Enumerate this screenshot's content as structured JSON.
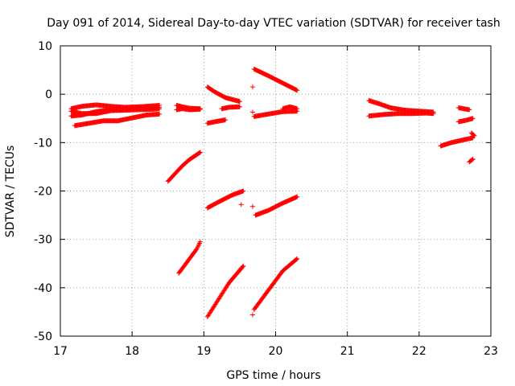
{
  "chart_data": {
    "type": "scatter",
    "title": "Day 091 of 2014, Sidereal Day-to-day VTEC variation (SDTVAR) for receiver tash",
    "xlabel": "GPS time / hours",
    "ylabel": "SDTVAR / TECUs",
    "xlim": [
      17,
      23
    ],
    "ylim": [
      -50,
      10
    ],
    "xticks": [
      "17",
      "18",
      "19",
      "20",
      "21",
      "22",
      "23"
    ],
    "yticks": [
      "10",
      "0",
      "-10",
      "-20",
      "-30",
      "-40",
      "-50"
    ],
    "grid": true,
    "marker": "plus",
    "color": "#ff0000",
    "series_segments": [
      {
        "x": [
          17.15,
          17.3,
          17.5,
          17.7,
          17.9,
          18.1,
          18.3,
          18.38
        ],
        "y": [
          -3.0,
          -2.5,
          -2.2,
          -2.5,
          -2.7,
          -2.6,
          -2.4,
          -2.3
        ]
      },
      {
        "x": [
          17.15,
          17.3,
          17.5,
          17.7,
          17.9,
          18.1,
          18.3,
          18.38
        ],
        "y": [
          -4.5,
          -4.3,
          -3.6,
          -3.2,
          -3.0,
          -2.9,
          -2.8,
          -2.7
        ]
      },
      {
        "x": [
          17.15,
          17.3,
          17.5,
          17.7,
          17.9,
          18.1,
          18.3,
          18.38
        ],
        "y": [
          -3.5,
          -4.0,
          -4.0,
          -3.4,
          -3.3,
          -3.2,
          -3.1,
          -3.0
        ]
      },
      {
        "x": [
          17.2,
          17.4,
          17.6,
          17.8,
          18.0,
          18.2,
          18.38
        ],
        "y": [
          -6.5,
          -6.0,
          -5.5,
          -5.5,
          -4.9,
          -4.3,
          -4.1
        ]
      },
      {
        "x": [
          18.62,
          18.7,
          18.8,
          18.95
        ],
        "y": [
          -2.3,
          -2.6,
          -2.9,
          -3.0
        ]
      },
      {
        "x": [
          18.62,
          18.7,
          18.8,
          18.95
        ],
        "y": [
          -3.2,
          -3.0,
          -3.2,
          -3.1
        ]
      },
      {
        "x": [
          18.5,
          18.6,
          18.7,
          18.8,
          18.95
        ],
        "y": [
          -18.0,
          -16.4,
          -14.8,
          -13.5,
          -12.0
        ]
      },
      {
        "x": [
          18.65,
          18.7,
          18.8,
          18.9,
          18.95
        ],
        "y": [
          -37.0,
          -36.0,
          -34.0,
          -32.0,
          -30.5
        ]
      },
      {
        "x": [
          19.05,
          19.15,
          19.3,
          19.5
        ],
        "y": [
          1.5,
          0.5,
          -0.7,
          -1.5
        ]
      },
      {
        "x": [
          19.25,
          19.35,
          19.5
        ],
        "y": [
          -3.0,
          -2.7,
          -2.6
        ]
      },
      {
        "x": [
          19.05,
          19.15,
          19.3
        ],
        "y": [
          -6.0,
          -5.7,
          -5.3
        ]
      },
      {
        "x": [
          19.05,
          19.2,
          19.4,
          19.55
        ],
        "y": [
          -23.5,
          -22.3,
          -20.8,
          -20.0
        ]
      },
      {
        "x": [
          19.05,
          19.2,
          19.35,
          19.55
        ],
        "y": [
          -46.0,
          -42.5,
          -39.0,
          -35.5
        ]
      },
      {
        "x": [
          19.7,
          19.9,
          20.1,
          20.3
        ],
        "y": [
          5.2,
          3.8,
          2.3,
          0.8
        ]
      },
      {
        "x": [
          19.7,
          19.9,
          20.1,
          20.3
        ],
        "y": [
          -4.6,
          -4.1,
          -3.6,
          -3.5
        ]
      },
      {
        "x": [
          20.1,
          20.2,
          20.3
        ],
        "y": [
          -3.0,
          -2.6,
          -3.0
        ]
      },
      {
        "x": [
          19.72,
          19.9,
          20.1,
          20.3
        ],
        "y": [
          -25.0,
          -24.0,
          -22.5,
          -21.2
        ]
      },
      {
        "x": [
          19.7,
          19.8,
          19.95,
          20.1,
          20.3
        ],
        "y": [
          -44.5,
          -42.5,
          -39.5,
          -36.5,
          -34.0
        ]
      },
      {
        "x": [
          21.3,
          21.45,
          21.6,
          21.8,
          22.0,
          22.2
        ],
        "y": [
          -1.3,
          -2.0,
          -2.8,
          -3.3,
          -3.5,
          -3.7
        ]
      },
      {
        "x": [
          21.3,
          21.5,
          21.7,
          21.9,
          22.1,
          22.2
        ],
        "y": [
          -4.5,
          -4.2,
          -4.0,
          -4.0,
          -3.9,
          -4.0
        ]
      },
      {
        "x": [
          22.55,
          22.62,
          22.7
        ],
        "y": [
          -2.8,
          -3.0,
          -3.2
        ]
      },
      {
        "x": [
          22.55,
          22.65,
          22.75
        ],
        "y": [
          -5.7,
          -5.4,
          -5.0
        ]
      },
      {
        "x": [
          22.3,
          22.45,
          22.6,
          22.75
        ],
        "y": [
          -10.7,
          -10.0,
          -9.5,
          -9.0
        ]
      },
      {
        "x": [
          22.73,
          22.77
        ],
        "y": [
          -8.0,
          -8.6
        ]
      },
      {
        "x": [
          22.7,
          22.75
        ],
        "y": [
          -14.0,
          -13.4
        ]
      }
    ],
    "isolated_points": [
      {
        "x": 19.68,
        "y": 1.5
      },
      {
        "x": 19.68,
        "y": -3.7
      },
      {
        "x": 19.52,
        "y": -22.8
      },
      {
        "x": 19.68,
        "y": -23.2
      },
      {
        "x": 19.68,
        "y": -45.6
      }
    ]
  }
}
